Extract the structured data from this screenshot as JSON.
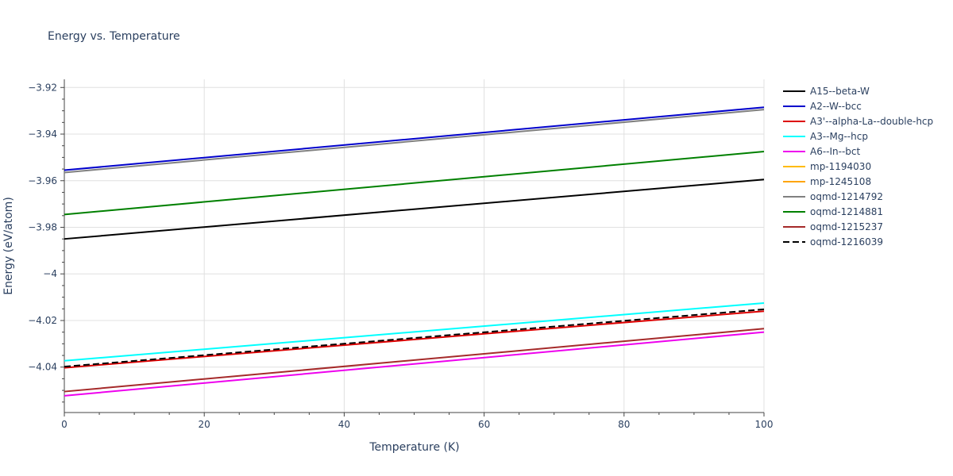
{
  "chart_data": {
    "type": "line",
    "title": "Energy vs. Temperature",
    "xlabel": "Temperature (K)",
    "ylabel": "Energy (eV/atom)",
    "xlim": [
      0,
      100
    ],
    "ylim": [
      -4.0595,
      -3.9165
    ],
    "x_ticks": [
      0,
      20,
      40,
      60,
      80,
      100
    ],
    "x_tick_labels": [
      "0",
      "20",
      "40",
      "60",
      "80",
      "100"
    ],
    "y_ticks": [
      -3.92,
      -3.94,
      -3.96,
      -3.98,
      -4.0,
      -4.02,
      -4.04
    ],
    "y_tick_labels": [
      "−3.92",
      "−3.94",
      "−3.96",
      "−3.98",
      "−4",
      "−4.02",
      "−4.04"
    ],
    "grid": true,
    "legend_position": "right",
    "series": [
      {
        "name": "A15--beta-W",
        "color": "#000000",
        "dash": "solid",
        "x": [
          0,
          100
        ],
        "y": [
          -3.985,
          -3.9595
        ]
      },
      {
        "name": "A2--W--bcc",
        "color": "#0000cc",
        "dash": "solid",
        "x": [
          0,
          100
        ],
        "y": [
          -3.9555,
          -3.9285
        ]
      },
      {
        "name": "A3'--alpha-La--double-hcp",
        "color": "#dd0000",
        "dash": "solid",
        "x": [
          0,
          100
        ],
        "y": [
          -4.0403,
          -4.016
        ]
      },
      {
        "name": "A3--Mg--hcp",
        "color": "#00ffff",
        "dash": "solid",
        "x": [
          0,
          100
        ],
        "y": [
          -4.0373,
          -4.0125
        ]
      },
      {
        "name": "A6--In--bct",
        "color": "#ee00ee",
        "dash": "solid",
        "x": [
          0,
          100
        ],
        "y": [
          -4.0523,
          -4.025
        ]
      },
      {
        "name": "mp-1194030",
        "color": "#ffbb00",
        "dash": "solid",
        "x": [],
        "y": []
      },
      {
        "name": "mp-1245108",
        "color": "#ffa500",
        "dash": "solid",
        "x": [],
        "y": []
      },
      {
        "name": "oqmd-1214792",
        "color": "#808080",
        "dash": "solid",
        "x": [
          0,
          100
        ],
        "y": [
          -3.9565,
          -3.9295
        ]
      },
      {
        "name": "oqmd-1214881",
        "color": "#008000",
        "dash": "solid",
        "x": [
          0,
          100
        ],
        "y": [
          -3.9745,
          -3.9475
        ]
      },
      {
        "name": "oqmd-1215237",
        "color": "#a52a2a",
        "dash": "solid",
        "x": [
          0,
          100
        ],
        "y": [
          -4.0505,
          -4.0235
        ]
      },
      {
        "name": "oqmd-1216039",
        "color": "#000000",
        "dash": "dash",
        "x": [
          0,
          100
        ],
        "y": [
          -4.0398,
          -4.0152
        ]
      }
    ]
  }
}
